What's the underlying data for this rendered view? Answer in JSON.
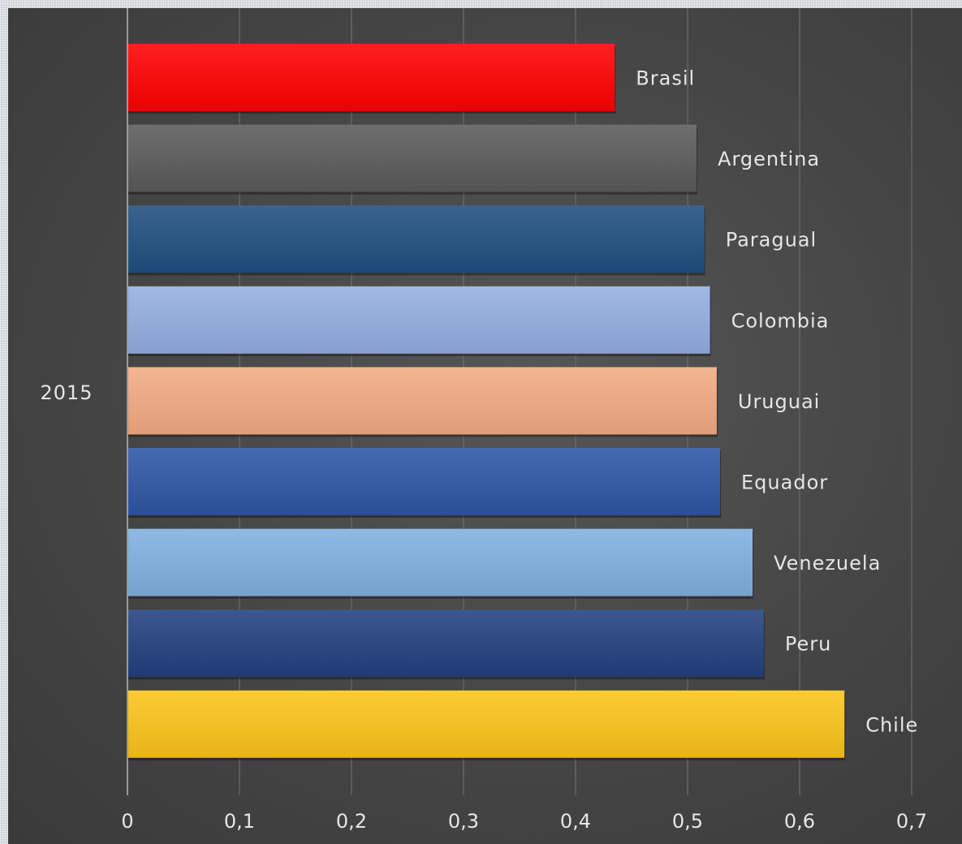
{
  "chart_data": {
    "type": "bar",
    "orientation": "horizontal",
    "category": "2015",
    "series": [
      {
        "name": "Brasil",
        "value": 0.435,
        "color": "#ff0000"
      },
      {
        "name": "Argentina",
        "value": 0.508,
        "color": "#5a5a5a"
      },
      {
        "name": "Paragual",
        "value": 0.515,
        "color": "#1e4f80"
      },
      {
        "name": "Colombia",
        "value": 0.52,
        "color": "#94aee0"
      },
      {
        "name": "Uruguai",
        "value": 0.526,
        "color": "#f3ab82"
      },
      {
        "name": "Equador",
        "value": 0.529,
        "color": "#2d56a6"
      },
      {
        "name": "Venezuela",
        "value": 0.558,
        "color": "#7fb1e0"
      },
      {
        "name": "Peru",
        "value": 0.568,
        "color": "#22407f"
      },
      {
        "name": "Chile",
        "value": 0.64,
        "color": "#fcc419"
      }
    ],
    "x_ticks": [
      "0",
      "0,1",
      "0,2",
      "0,3",
      "0,4",
      "0,5",
      "0,6",
      "0,7"
    ],
    "xlim": [
      0,
      0.7
    ],
    "grid": true,
    "data_labels": "series name at bar end"
  }
}
